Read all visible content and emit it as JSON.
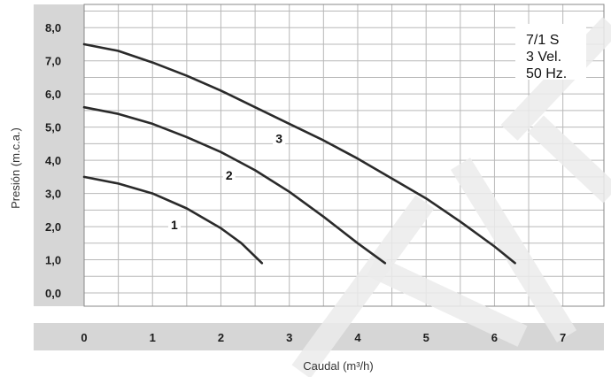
{
  "chart_data": {
    "type": "line",
    "xlabel": "Caudal (m³/h)",
    "ylabel": "Presión (m.c.a.)",
    "xlim": [
      0,
      7.6
    ],
    "ylim": [
      -0.4,
      8.7
    ],
    "x_ticks": [
      "0",
      "1",
      "2",
      "3",
      "4",
      "5",
      "6",
      "7"
    ],
    "y_ticks": [
      "0,0",
      "1,0",
      "2,0",
      "3,0",
      "4,0",
      "5,0",
      "6,0",
      "7,0",
      "8,0"
    ],
    "grid": true,
    "annotation_lines": [
      "7/1 S",
      "3 Vel.",
      "50 Hz."
    ],
    "series": [
      {
        "name": "1",
        "x": [
          0,
          0.5,
          1.0,
          1.5,
          2.0,
          2.3,
          2.6
        ],
        "y": [
          3.5,
          3.3,
          3.0,
          2.55,
          1.95,
          1.5,
          0.9
        ]
      },
      {
        "name": "2",
        "x": [
          0,
          0.5,
          1.0,
          1.5,
          2.0,
          2.5,
          3.0,
          3.5,
          4.0,
          4.4
        ],
        "y": [
          5.6,
          5.4,
          5.1,
          4.7,
          4.25,
          3.7,
          3.05,
          2.3,
          1.5,
          0.9
        ]
      },
      {
        "name": "3",
        "x": [
          0,
          0.5,
          1.0,
          1.5,
          2.0,
          2.5,
          3.0,
          3.5,
          4.0,
          4.5,
          5.0,
          5.5,
          6.0,
          6.3
        ],
        "y": [
          7.5,
          7.3,
          6.95,
          6.55,
          6.1,
          5.6,
          5.1,
          4.6,
          4.05,
          3.45,
          2.85,
          2.15,
          1.4,
          0.9
        ]
      }
    ]
  },
  "colors": {
    "curve": "#2a2a2a",
    "grid": "#b8b8b8",
    "axis_band": "#d6d6d6",
    "watermark": "#ececec"
  }
}
